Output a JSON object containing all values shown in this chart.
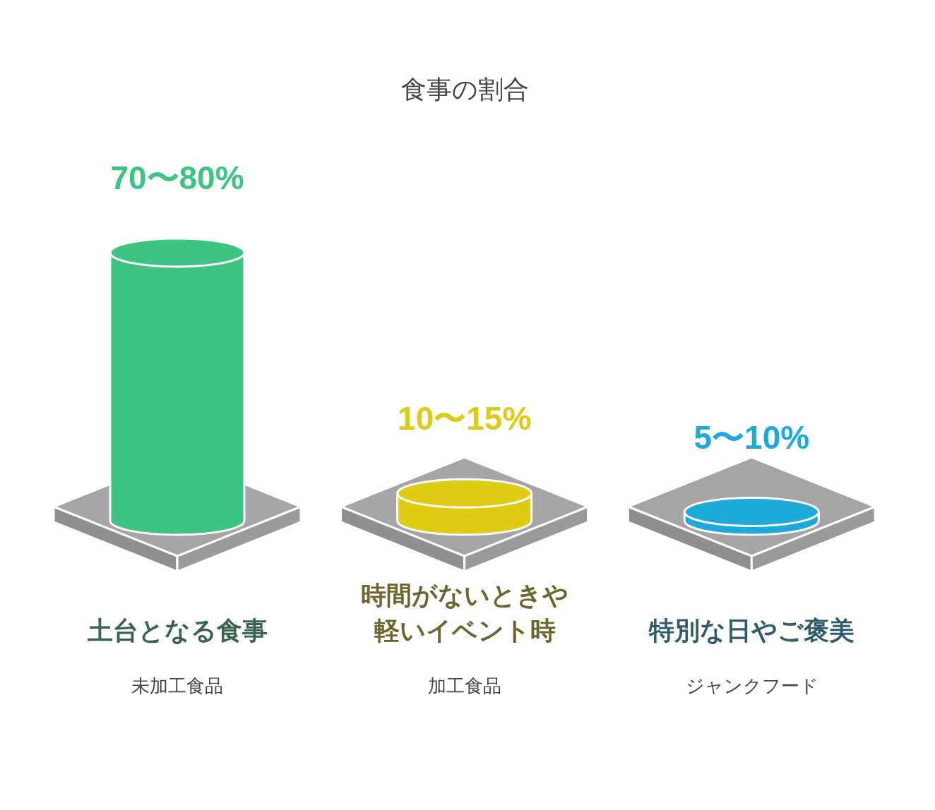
{
  "chart_data": {
    "type": "bar",
    "title": "食事の割合",
    "categories": [
      "土台となる食事",
      "時間がないときや軽いイベント時",
      "特別な日やご褒美"
    ],
    "values": [
      80,
      15,
      10
    ],
    "colors": [
      "#3dc482",
      "#dfcb14",
      "#1ea9db"
    ],
    "value_labels": [
      "70〜80%",
      "10〜15%",
      "5〜10%"
    ],
    "annotations": [
      "未加工食品",
      "加工食品",
      "ジャンクフード"
    ]
  }
}
